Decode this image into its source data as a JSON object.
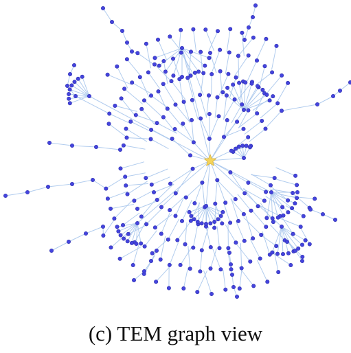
{
  "caption": "(c) TEM graph view",
  "graph": {
    "root_marker": "star",
    "colors": {
      "node_fill": "#4444dd",
      "node_stroke": "#2f2fae",
      "edge": "#a9c7ec",
      "root_fill": "#f4d45c",
      "root_stroke": "#d8b23f"
    }
  }
}
